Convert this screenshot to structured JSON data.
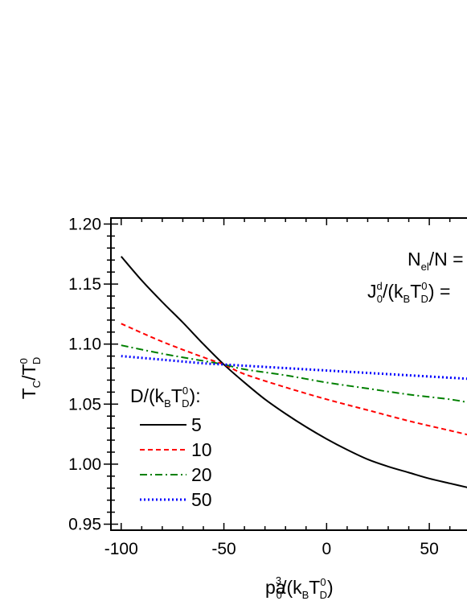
{
  "chart_data": {
    "type": "line",
    "xlabel": {
      "text": "pa",
      "sub": "0",
      "sup": "3",
      "rest": "/(k",
      "sub2": "B",
      "main2": "T",
      "sup2": "0",
      "sub3": "D",
      "close": ")"
    },
    "ylabel": {
      "text": "T",
      "sub": "C",
      "slash": "/T",
      "sup": "0",
      "sub2": "D"
    },
    "xlim": [
      -105,
      75
    ],
    "ylim": [
      0.945,
      1.205
    ],
    "x_ticks": [
      -100,
      -50,
      0,
      50
    ],
    "x_tick_labels": [
      "-100",
      "-50",
      "0",
      "50"
    ],
    "y_ticks": [
      0.95,
      1.0,
      1.05,
      1.1,
      1.15,
      1.2
    ],
    "y_tick_labels": [
      "0.95",
      "1.00",
      "1.05",
      "1.10",
      "1.15",
      "1.20"
    ],
    "legend": {
      "title": {
        "pre": "D/(k",
        "sub": "B",
        "main": "T",
        "sup": "0",
        "sub2": "D",
        "post": "):"
      },
      "placement": "left"
    },
    "annotations": [
      {
        "pre": "N",
        "sub": "el",
        "post": "/N ="
      },
      {
        "pre": "J",
        "sup": "d",
        "sub": "0",
        "mid": "/(k",
        "sub2": "B",
        "main": "T",
        "sup2": "0",
        "sub3": "D",
        "post": ") ="
      }
    ],
    "series": [
      {
        "name": "5",
        "color": "#000000",
        "dash": "solid",
        "x": [
          -100,
          -90,
          -80,
          -70,
          -60,
          -50,
          -40,
          -30,
          -20,
          -10,
          0,
          10,
          20,
          30,
          40,
          50,
          60,
          70
        ],
        "y": [
          1.173,
          1.153,
          1.135,
          1.118,
          1.1,
          1.083,
          1.068,
          1.054,
          1.042,
          1.031,
          1.021,
          1.012,
          1.004,
          0.998,
          0.993,
          0.988,
          0.984,
          0.98
        ]
      },
      {
        "name": "10",
        "color": "#ff0000",
        "dash": "dash",
        "x": [
          -100,
          -80,
          -60,
          -50,
          -40,
          -20,
          0,
          20,
          40,
          60,
          70
        ],
        "y": [
          1.117,
          1.102,
          1.089,
          1.083,
          1.075,
          1.064,
          1.054,
          1.045,
          1.036,
          1.028,
          1.024
        ]
      },
      {
        "name": "20",
        "color": "#008000",
        "dash": "dashdot",
        "x": [
          -100,
          -80,
          -60,
          -50,
          -40,
          -20,
          0,
          20,
          40,
          60,
          70
        ],
        "y": [
          1.099,
          1.092,
          1.086,
          1.083,
          1.079,
          1.074,
          1.068,
          1.063,
          1.058,
          1.054,
          1.051
        ]
      },
      {
        "name": "50",
        "color": "#0000ff",
        "dash": "dot",
        "x": [
          -100,
          -80,
          -60,
          -50,
          -40,
          -20,
          0,
          20,
          40,
          60,
          70
        ],
        "y": [
          1.09,
          1.087,
          1.084,
          1.083,
          1.082,
          1.08,
          1.078,
          1.076,
          1.074,
          1.072,
          1.071
        ]
      }
    ]
  }
}
